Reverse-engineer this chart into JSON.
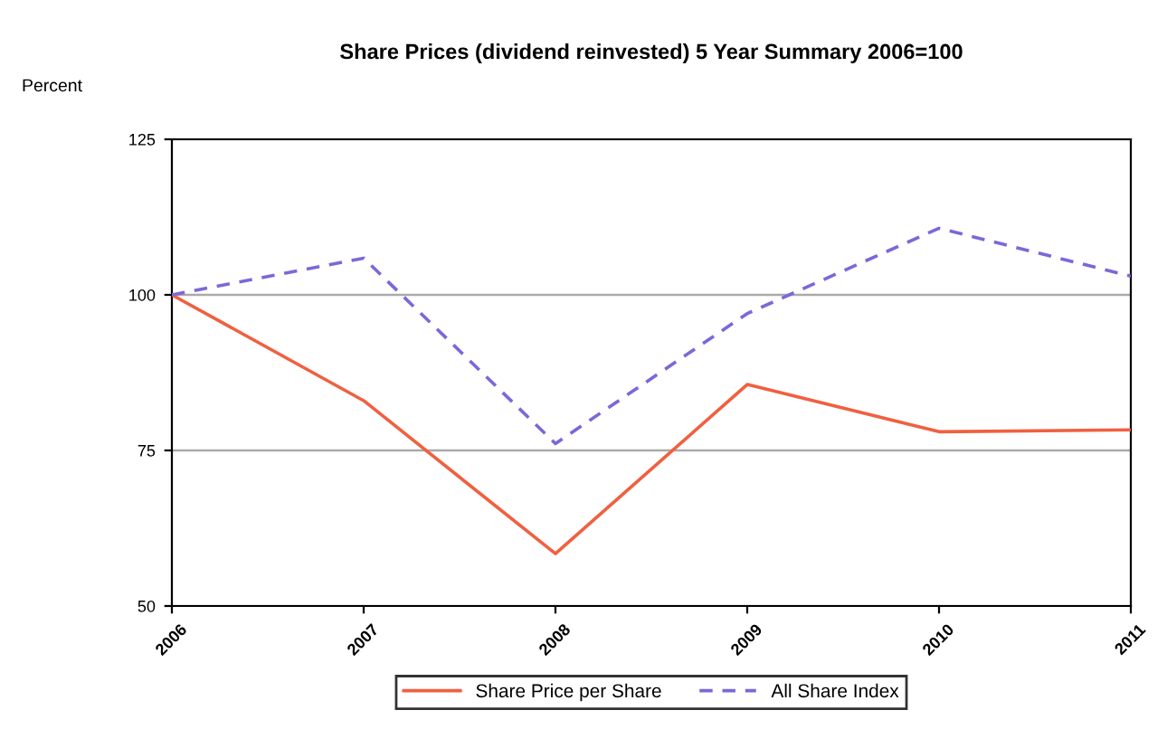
{
  "chart_data": {
    "type": "line",
    "title": "Share Prices (dividend reinvested) 5 Year Summary 2006=100",
    "ylabel": "Percent",
    "categories": [
      "2006",
      "2007",
      "2008",
      "2009",
      "2010",
      "2011"
    ],
    "series": [
      {
        "name": "Share Price per Share",
        "color": "#f06040",
        "line_style": "solid",
        "values": [
          100,
          83,
          58.4,
          85.6,
          78,
          78.3
        ]
      },
      {
        "name": "All Share Index",
        "color": "#7b68d8",
        "line_style": "dashed",
        "values": [
          100,
          105.9,
          76.1,
          97,
          110.7,
          103
        ]
      }
    ],
    "ylim": [
      50,
      125
    ],
    "yticks": [
      50,
      75,
      100,
      125
    ],
    "grid": "y",
    "legend": "bottom",
    "marker": "none"
  }
}
